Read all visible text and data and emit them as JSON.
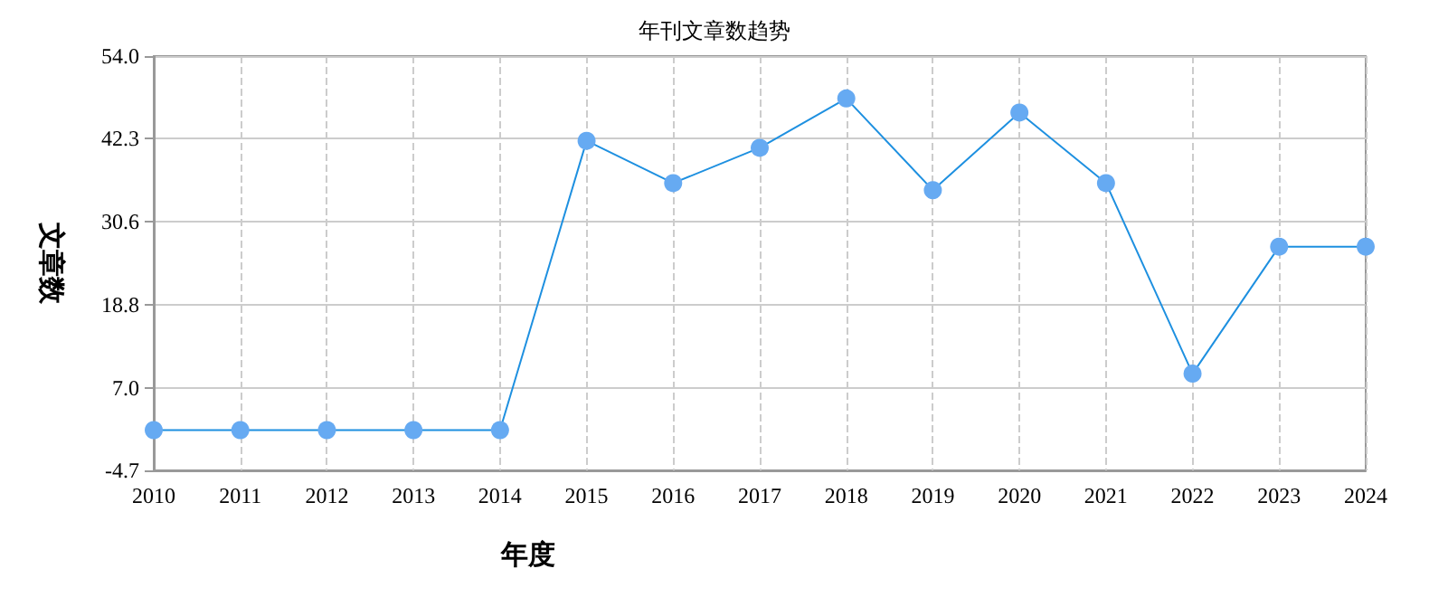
{
  "chart_data": {
    "type": "line",
    "title": "年刊文章数趋势",
    "xlabel": "年度",
    "ylabel": "文章数",
    "categories": [
      "2010",
      "2011",
      "2012",
      "2013",
      "2014",
      "2015",
      "2016",
      "2017",
      "2018",
      "2019",
      "2020",
      "2021",
      "2022",
      "2023",
      "2024"
    ],
    "series": [
      {
        "color": "#1e90e0",
        "values": [
          1,
          1,
          1,
          1,
          1,
          42,
          36,
          41,
          48,
          35,
          46,
          36,
          9,
          27,
          27
        ]
      }
    ],
    "ylim": [
      -4.7,
      54
    ],
    "yticks": [
      -4.7,
      {
        "value": 7,
        "label": "7.0"
      },
      18.8,
      30.6,
      42.3,
      {
        "value": 54,
        "label": "54.0"
      }
    ],
    "grid": true,
    "marker": "circle",
    "line_style": "solid"
  }
}
